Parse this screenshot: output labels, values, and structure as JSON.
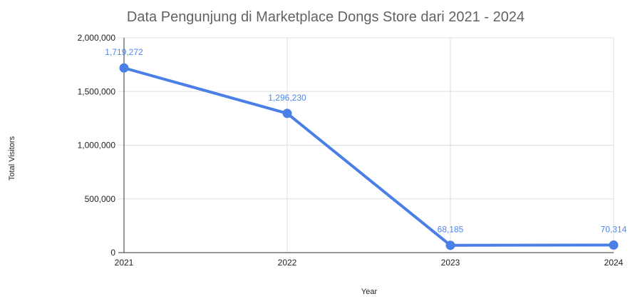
{
  "chart_data": {
    "type": "line",
    "title": "Data Pengunjung di Marketplace Dongs Store dari 2021 - 2024",
    "xlabel": "Year",
    "ylabel": "Total Visitors",
    "categories": [
      "2021",
      "2022",
      "2023",
      "2024"
    ],
    "series": [
      {
        "values": [
          1719272,
          1296230,
          68185,
          70314
        ],
        "data_labels": [
          "1,719,272",
          "1,296,230",
          "68,185",
          "70,314"
        ]
      }
    ],
    "ylim": [
      0,
      2000000
    ],
    "yticks": [
      0,
      500000,
      1000000,
      1500000,
      2000000
    ],
    "ytick_labels": [
      "0",
      "500,000",
      "1,000,000",
      "1,500,000",
      "2,000,000"
    ],
    "grid": true,
    "legend": "none",
    "colors": {
      "line": "#4a7fe6",
      "label": "#4f86ec"
    }
  }
}
